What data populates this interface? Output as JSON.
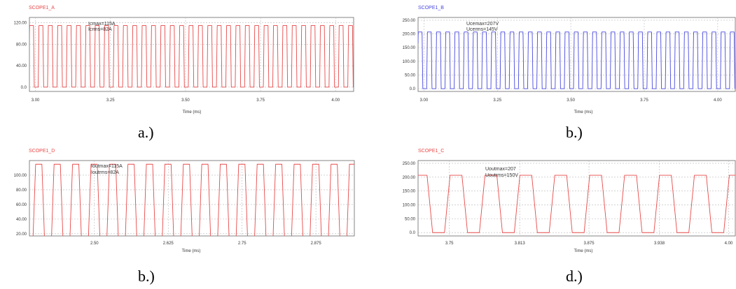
{
  "colors": {
    "red": "#e84848",
    "blue": "#4848e0",
    "grid": "#b8b8b8",
    "axis": "#666666"
  },
  "chart_data": [
    {
      "id": "A",
      "type": "line",
      "title": "SCOPE1_A",
      "xlabel": "Time (ms)",
      "ylabel": "",
      "xlim": [
        2.98,
        4.06
      ],
      "ylim": [
        -8,
        130
      ],
      "xticks": [
        3.0,
        3.25,
        3.5,
        3.75,
        4.0
      ],
      "xtick_labels": [
        "3.00",
        "3.25",
        "3.50",
        "3.75",
        "4.00"
      ],
      "yticks": [
        0,
        40,
        80,
        120
      ],
      "ytick_labels": [
        "0.0",
        "40.00",
        "80.00",
        "120.00"
      ],
      "grid": true,
      "annotations": [
        "Icmax=115A",
        "Icrms=82A"
      ],
      "series": [
        {
          "color": "red",
          "waveform": {
            "type": "trapezoid",
            "low": 0,
            "high": 115,
            "period": 0.03125,
            "phase": 2.978,
            "duty": 0.5,
            "rise_frac": 0.08
          }
        }
      ],
      "caption": "a.)"
    },
    {
      "id": "B",
      "type": "line",
      "title": "SCOPE1_B",
      "xlabel": "Time (ms)",
      "ylabel": "",
      "xlim": [
        2.98,
        4.06
      ],
      "ylim": [
        -10,
        260
      ],
      "xticks": [
        3.0,
        3.25,
        3.5,
        3.75,
        4.0
      ],
      "xtick_labels": [
        "3.00",
        "3.25",
        "3.50",
        "3.75",
        "4.00"
      ],
      "yticks": [
        0,
        50,
        100,
        150,
        200,
        250
      ],
      "ytick_labels": [
        "0.0",
        "50.00",
        "100.00",
        "150.00",
        "200.00",
        "250.00"
      ],
      "grid": true,
      "annotations": [
        "Ucemax=207V",
        "Ucerms=145V"
      ],
      "series": [
        {
          "color": "blue",
          "waveform": {
            "type": "trapezoid",
            "low": 0,
            "high": 207,
            "period": 0.03125,
            "phase": 2.978,
            "duty": 0.5,
            "rise_frac": 0.08
          }
        }
      ],
      "caption": "b.)"
    },
    {
      "id": "D",
      "type": "line",
      "title": "SCOPE1_D",
      "xlabel": "Time (ms)",
      "ylabel": "",
      "xlim": [
        2.39,
        2.94
      ],
      "ylim": [
        17,
        120
      ],
      "xticks": [
        2.5,
        2.625,
        2.75,
        2.875
      ],
      "xtick_labels": [
        "2.50",
        "2.625",
        "2.75",
        "2.875"
      ],
      "yticks": [
        20,
        40,
        60,
        80,
        100
      ],
      "ytick_labels": [
        "20.00",
        "40.00",
        "60.00",
        "80.00",
        "100.00"
      ],
      "grid": true,
      "annotations": [
        "Ioutmax=115A",
        "Ioutrms=82A"
      ],
      "series": [
        {
          "color": "red",
          "waveform": {
            "type": "trapezoid",
            "low": 0,
            "high": 115,
            "period": 0.03125,
            "phase": 2.3955,
            "duty": 0.5,
            "rise_frac": 0.16
          }
        }
      ],
      "caption": "b.)"
    },
    {
      "id": "C",
      "type": "line",
      "title": "SCOPE1_C",
      "xlabel": "Time (ms)",
      "ylabel": "",
      "xlim": [
        3.722,
        4.006
      ],
      "ylim": [
        -12,
        260
      ],
      "xticks": [
        3.75,
        3.813,
        3.875,
        3.938,
        4.0
      ],
      "xtick_labels": [
        "3.75",
        "3.813",
        "3.875",
        "3.938",
        "4.00"
      ],
      "yticks": [
        0,
        50,
        100,
        150,
        200,
        250
      ],
      "ytick_labels": [
        "0.0",
        "50.00",
        "100.00",
        "150.00",
        "200.00",
        "250.00"
      ],
      "grid": true,
      "annotations": [
        "Uoutmax=207",
        "Uoutrms=150V"
      ],
      "series": [
        {
          "color": "red",
          "waveform": {
            "type": "trapezoid",
            "low": 0,
            "high": 207,
            "period": 0.03125,
            "phase": 3.7144,
            "duty": 0.5,
            "rise_frac": 0.16
          }
        }
      ],
      "caption": "d.)"
    }
  ]
}
